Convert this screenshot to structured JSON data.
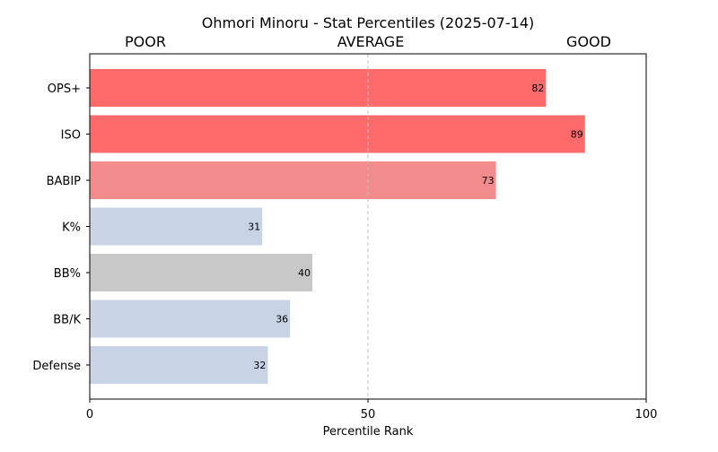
{
  "chart_data": {
    "type": "bar",
    "orientation": "horizontal",
    "title": "Ohmori Minoru - Stat Percentiles (2025-07-14)",
    "band_labels": {
      "poor": "POOR",
      "average": "AVERAGE",
      "good": "GOOD"
    },
    "xlabel": "Percentile Rank",
    "ylabel": "",
    "xlim": [
      0,
      100
    ],
    "xticks": [
      "0",
      "50",
      "100"
    ],
    "xtick_values": [
      0,
      50,
      100
    ],
    "reference_line": 50,
    "grid": false,
    "categories": [
      "OPS+",
      "ISO",
      "BABIP",
      "K%",
      "BB%",
      "BB/K",
      "Defense"
    ],
    "values": [
      82,
      89,
      73,
      31,
      40,
      36,
      32
    ],
    "value_labels": [
      "82",
      "89",
      "73",
      "31",
      "40",
      "36",
      "32"
    ],
    "bar_colors": [
      "#ff6b6b",
      "#ff6b6b",
      "#f28b8b",
      "#c8d4e6",
      "#c8c8c8",
      "#c8d4e6",
      "#c8d4e6"
    ]
  }
}
